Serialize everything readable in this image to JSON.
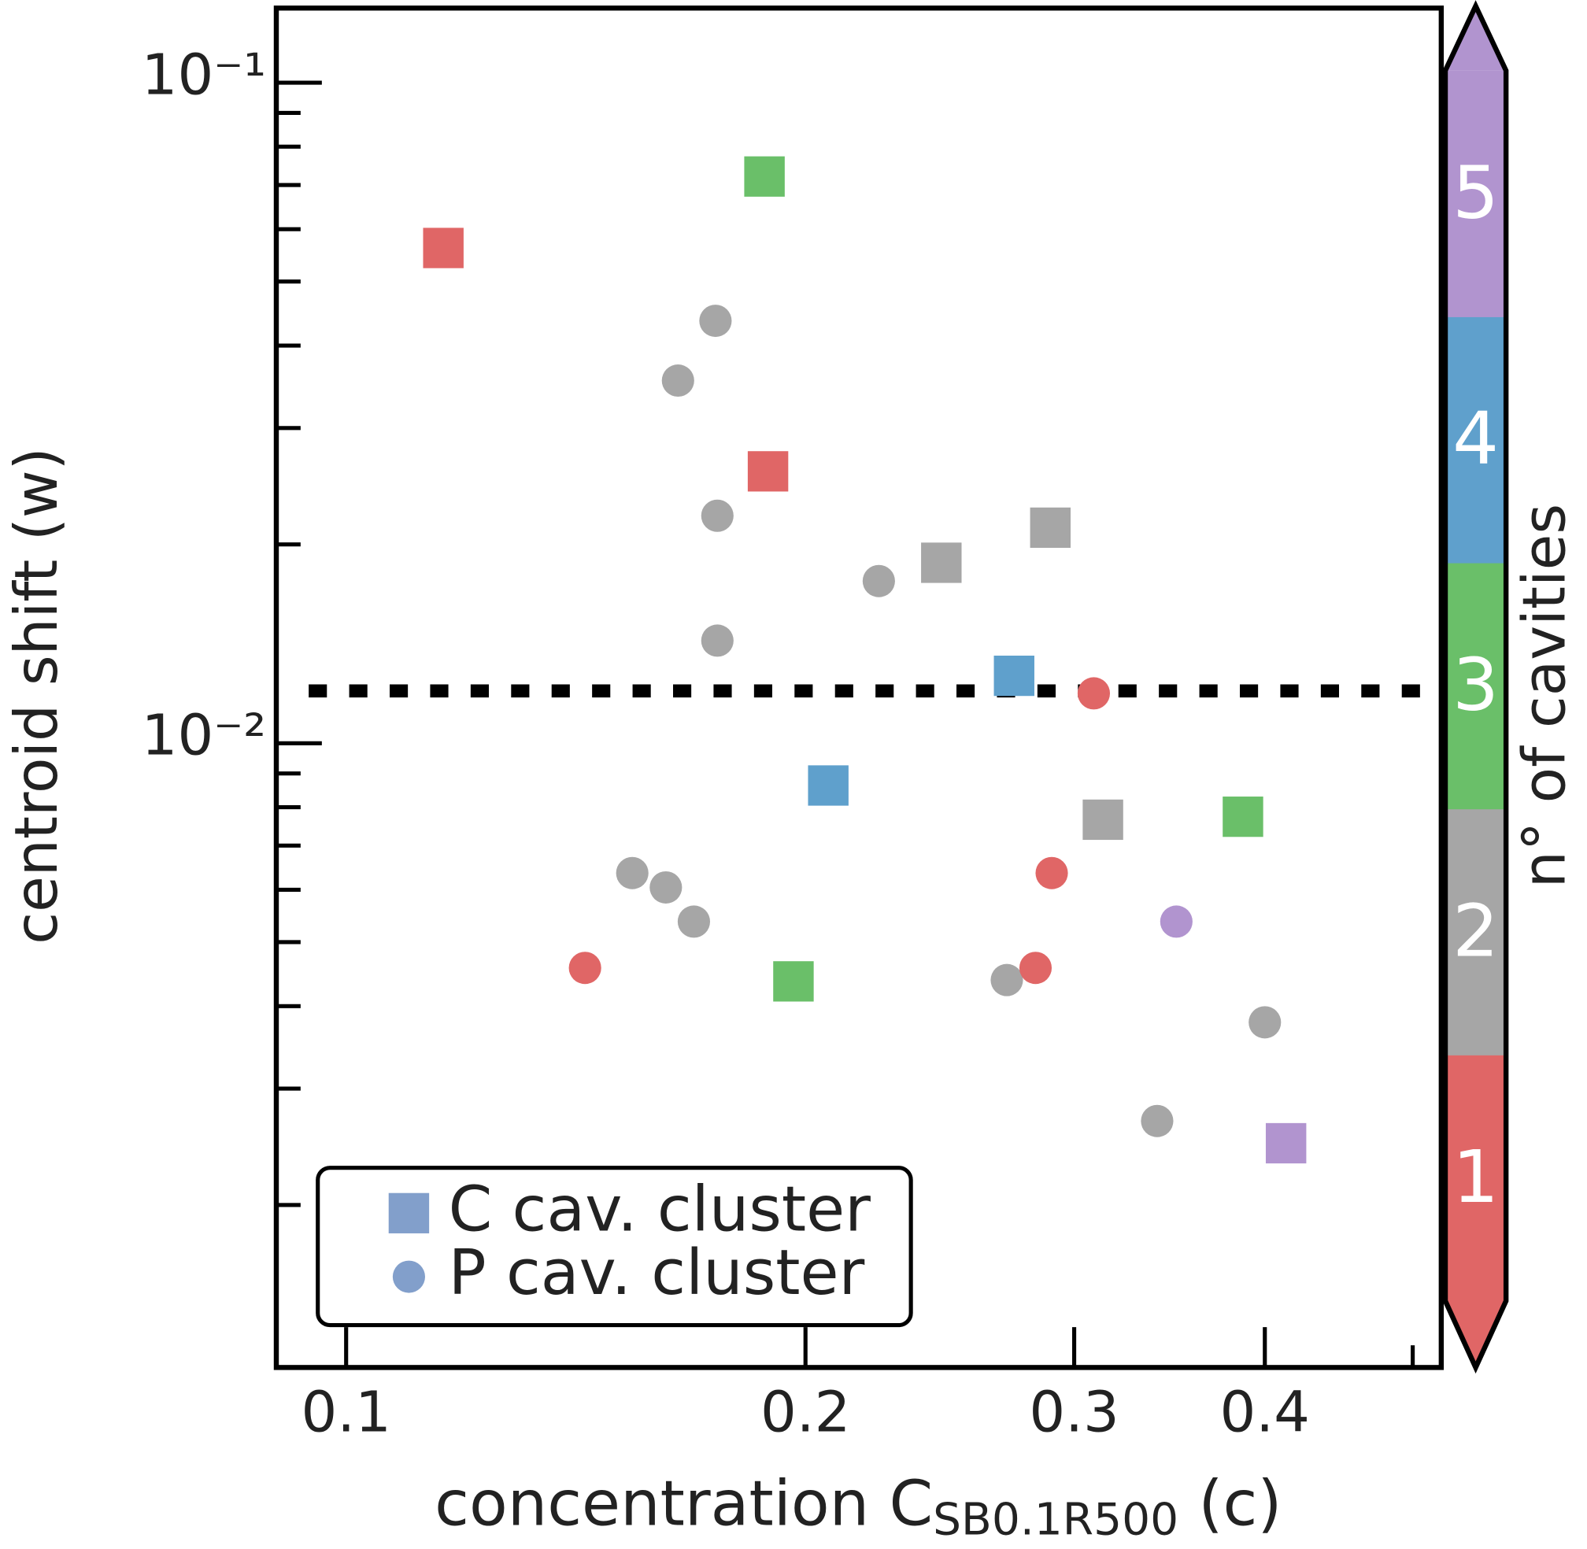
{
  "chart_data": {
    "type": "scatter",
    "xlabel_parts": [
      "concentration C",
      "SB0.1R500",
      " (c)"
    ],
    "ylabel": "centroid shift (w)",
    "xscale": "log",
    "yscale": "log",
    "xlim": [
      0.09,
      0.522
    ],
    "ylim": [
      0.001135,
      0.1297
    ],
    "xticks": [
      0.1,
      0.2,
      0.3,
      0.4
    ],
    "xminorticks": [
      0.5
    ],
    "yticks": [
      {
        "value": 0.1,
        "label": "10⁻¹"
      },
      {
        "value": 0.01,
        "label": "10⁻²"
      }
    ],
    "yminorticks": [
      0.002,
      0.003,
      0.004,
      0.005,
      0.006,
      0.007,
      0.008,
      0.009,
      0.02,
      0.03,
      0.04,
      0.05,
      0.06,
      0.07,
      0.08,
      0.09
    ],
    "hline": 0.012,
    "legend_position": "lower left",
    "legend_color": "#829fcb",
    "series": [
      {
        "name": "C cav. cluster",
        "marker": "square",
        "x": [
          0.1158,
          0.188,
          0.189,
          0.2455,
          0.2894,
          0.274,
          0.207,
          0.3133,
          0.387,
          0.1964,
          0.413
        ],
        "values": [
          0.0562,
          0.0721,
          0.0258,
          0.01876,
          0.0212,
          0.01265,
          0.00863,
          0.00766,
          0.00774,
          0.00436,
          0.00248
        ],
        "cavities": [
          1,
          3,
          1,
          2,
          2,
          4,
          4,
          2,
          3,
          3,
          5
        ]
      },
      {
        "name": "P cav. cluster",
        "marker": "circle",
        "x": [
          0.1746,
          0.165,
          0.1751,
          0.2234,
          0.1751,
          0.309,
          0.29,
          0.35,
          0.154,
          0.162,
          0.169,
          0.1434,
          0.271,
          0.283,
          0.4,
          0.34
        ],
        "values": [
          0.0436,
          0.0354,
          0.0221,
          0.0176,
          0.0143,
          0.0119,
          0.00636,
          0.00537,
          0.00636,
          0.00605,
          0.00537,
          0.00457,
          0.00438,
          0.00457,
          0.00378,
          0.00268
        ],
        "cavities": [
          2,
          2,
          2,
          2,
          2,
          1,
          1,
          5,
          2,
          2,
          2,
          1,
          2,
          1,
          2,
          2
        ]
      }
    ],
    "colorbar": {
      "label": "n° of cavities",
      "ticks": [
        1,
        2,
        3,
        4,
        5
      ],
      "colors": [
        "#e06666",
        "#a6a6a6",
        "#6abf69",
        "#5fa0cc",
        "#b194cf"
      ],
      "extend": "both"
    }
  }
}
